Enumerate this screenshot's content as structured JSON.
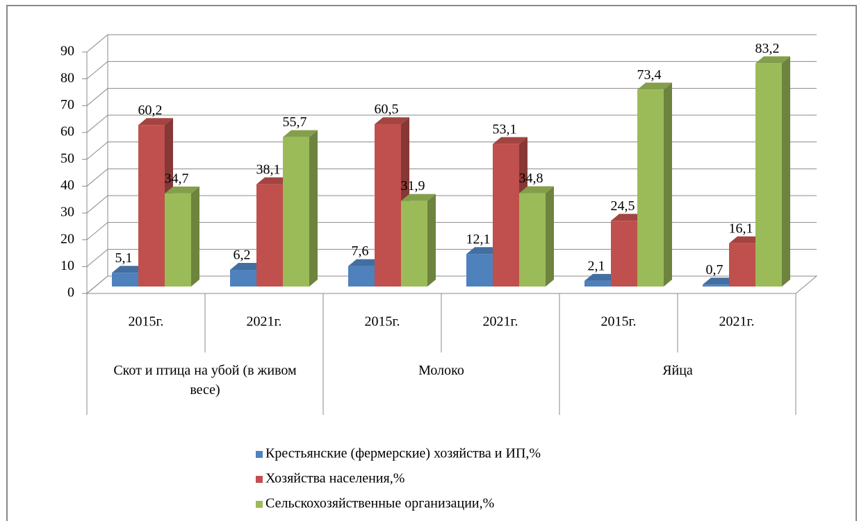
{
  "chart_data": {
    "type": "bar3d",
    "categories": [
      "2015г.",
      "2021г.",
      "2015г.",
      "2021г.",
      "2015г.",
      "2021г."
    ],
    "groups": [
      {
        "label": "Скот и птица на убой (в живом весе)",
        "span": 2
      },
      {
        "label": "Молоко",
        "span": 2
      },
      {
        "label": "Яйца",
        "span": 2
      }
    ],
    "series": [
      {
        "name": "Крестьянские (фермерские) хозяйства и ИП,%",
        "color": "#4f81bd",
        "values": [
          5.1,
          6.2,
          7.6,
          12.1,
          2.1,
          0.7
        ],
        "value_labels": [
          "5,1",
          "6,2",
          "7,6",
          "12,1",
          "2,1",
          "0,7"
        ]
      },
      {
        "name": "Хозяйства населения,%",
        "color": "#c0504d",
        "values": [
          60.2,
          38.1,
          60.5,
          53.1,
          24.5,
          16.1
        ],
        "value_labels": [
          "60,2",
          "38,1",
          "60,5",
          "53,1",
          "24,5",
          "16,1"
        ]
      },
      {
        "name": "Сельскохозяйственные организации,%",
        "color": "#9bbb59",
        "values": [
          34.7,
          55.7,
          31.9,
          34.8,
          73.4,
          83.2
        ],
        "value_labels": [
          "34,7",
          "55,7",
          "31,9",
          "34,8",
          "73,4",
          "83,2"
        ]
      }
    ],
    "ylim": [
      0,
      90
    ],
    "yticks": [
      0,
      10,
      20,
      30,
      40,
      50,
      60,
      70,
      80,
      90
    ],
    "grid": true,
    "legend": "bottom"
  }
}
